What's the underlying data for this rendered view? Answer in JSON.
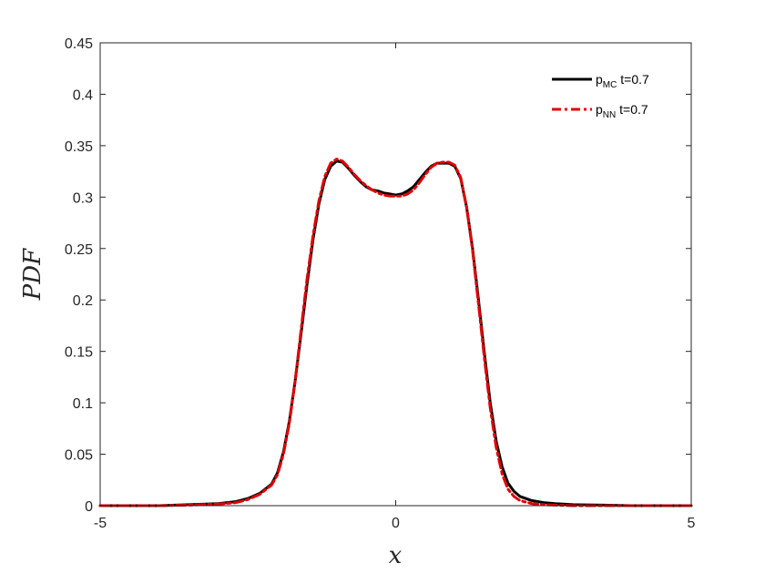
{
  "chart_data": {
    "type": "line",
    "xlabel": "x",
    "ylabel": "PDF",
    "xlim": [
      -5,
      5
    ],
    "ylim": [
      0,
      0.45
    ],
    "xticks": [
      -5,
      0,
      5
    ],
    "xtick_labels": [
      "-5",
      "0",
      "5"
    ],
    "yticks": [
      0,
      0.05,
      0.1,
      0.15,
      0.2,
      0.25,
      0.3,
      0.35,
      0.4,
      0.45
    ],
    "ytick_labels": [
      "0",
      "0.05",
      "0.1",
      "0.15",
      "0.2",
      "0.25",
      "0.3",
      "0.35",
      "0.4",
      "0.45"
    ],
    "grid": false,
    "legend_position": "top-right",
    "series": [
      {
        "name": "p_MC t=0.7",
        "legend_main": "p",
        "legend_sub": "MC",
        "legend_rest": " t=0.7",
        "color": "#000000",
        "style": "solid",
        "x": [
          -5,
          -4,
          -3.5,
          -3,
          -2.7,
          -2.5,
          -2.3,
          -2.1,
          -2,
          -1.9,
          -1.8,
          -1.7,
          -1.6,
          -1.5,
          -1.4,
          -1.3,
          -1.2,
          -1.1,
          -1,
          -0.9,
          -0.8,
          -0.7,
          -0.6,
          -0.5,
          -0.4,
          -0.3,
          -0.2,
          -0.1,
          0,
          0.1,
          0.2,
          0.3,
          0.4,
          0.5,
          0.6,
          0.7,
          0.8,
          0.9,
          1,
          1.1,
          1.2,
          1.3,
          1.4,
          1.5,
          1.6,
          1.7,
          1.8,
          1.9,
          2,
          2.1,
          2.3,
          2.5,
          2.7,
          3,
          3.5,
          4,
          5
        ],
        "y": [
          0,
          0,
          0.001,
          0.002,
          0.004,
          0.007,
          0.012,
          0.021,
          0.032,
          0.052,
          0.082,
          0.122,
          0.168,
          0.215,
          0.258,
          0.293,
          0.317,
          0.33,
          0.335,
          0.334,
          0.328,
          0.321,
          0.315,
          0.31,
          0.307,
          0.306,
          0.304,
          0.303,
          0.302,
          0.303,
          0.306,
          0.31,
          0.317,
          0.324,
          0.33,
          0.333,
          0.333,
          0.333,
          0.33,
          0.318,
          0.29,
          0.25,
          0.2,
          0.148,
          0.1,
          0.063,
          0.038,
          0.022,
          0.014,
          0.009,
          0.005,
          0.003,
          0.002,
          0.001,
          0.0005,
          0,
          0
        ]
      },
      {
        "name": "p_NN t=0.7",
        "legend_main": "p",
        "legend_sub": "NN",
        "legend_rest": " t=0.7",
        "color": "#e30000",
        "style": "dashdot",
        "x": [
          -5,
          -4,
          -3.5,
          -3,
          -2.7,
          -2.5,
          -2.3,
          -2.1,
          -2,
          -1.9,
          -1.8,
          -1.7,
          -1.6,
          -1.5,
          -1.4,
          -1.3,
          -1.2,
          -1.1,
          -1,
          -0.9,
          -0.8,
          -0.7,
          -0.6,
          -0.5,
          -0.4,
          -0.3,
          -0.2,
          -0.1,
          0,
          0.1,
          0.2,
          0.3,
          0.4,
          0.5,
          0.6,
          0.7,
          0.8,
          0.9,
          1,
          1.1,
          1.2,
          1.3,
          1.4,
          1.5,
          1.6,
          1.7,
          1.8,
          1.9,
          2,
          2.1,
          2.3,
          2.5,
          2.7,
          3,
          3.5,
          4,
          5
        ],
        "y": [
          0,
          0,
          0.0005,
          0.0015,
          0.003,
          0.006,
          0.011,
          0.02,
          0.03,
          0.05,
          0.08,
          0.122,
          0.172,
          0.22,
          0.262,
          0.296,
          0.32,
          0.333,
          0.337,
          0.335,
          0.329,
          0.322,
          0.316,
          0.311,
          0.307,
          0.304,
          0.302,
          0.301,
          0.301,
          0.301,
          0.303,
          0.307,
          0.314,
          0.322,
          0.329,
          0.333,
          0.334,
          0.334,
          0.331,
          0.319,
          0.29,
          0.248,
          0.196,
          0.143,
          0.095,
          0.057,
          0.031,
          0.016,
          0.009,
          0.005,
          0.002,
          0.001,
          0.0005,
          0,
          0,
          0,
          0
        ]
      }
    ]
  }
}
